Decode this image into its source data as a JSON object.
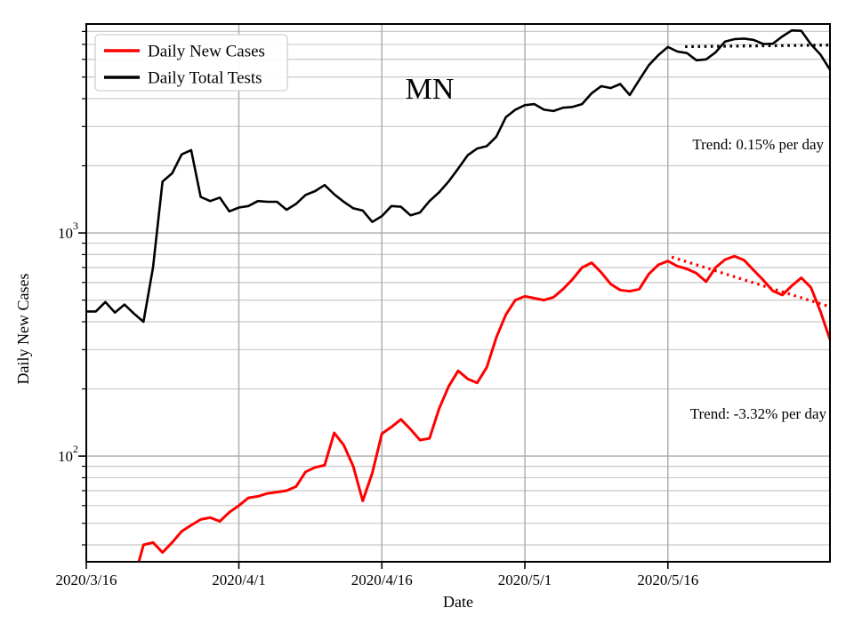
{
  "figure": {
    "title": "MN",
    "xlabel": "Date",
    "ylabel": "Daily New Cases",
    "legend": [
      {
        "label": "Daily New Cases",
        "color": "#ff0000"
      },
      {
        "label": "Daily Total Tests",
        "color": "#000000"
      }
    ],
    "annotations": [
      {
        "text": "Trend: 0.15% per day",
        "color": "#000000"
      },
      {
        "text": "Trend: -3.32% per day",
        "color": "#000000"
      }
    ],
    "colors": {
      "frame": "#000000",
      "grid_major": "#aaaaaa",
      "grid_minor": "#c8c8c8"
    }
  },
  "chart_data": {
    "type": "line",
    "yscale": "log",
    "ylim": [
      33.6,
      8640
    ],
    "x_range_days": [
      0,
      78
    ],
    "x_start_date": "2020/3/16",
    "x_tick_days": [
      0,
      16,
      31,
      46,
      61
    ],
    "x_tick_labels": [
      "2020/3/16",
      "2020/4/1",
      "2020/4/16",
      "2020/5/1",
      "2020/5/16"
    ],
    "y_ticks": [
      {
        "value": 1000,
        "base": "10",
        "exp": "3"
      },
      {
        "value": 100,
        "base": "10",
        "exp": "2"
      }
    ],
    "grid": true,
    "legend_position": "upper-left",
    "series": [
      {
        "name": "Daily Total Tests",
        "color": "#000000",
        "width": 2.6,
        "start_day": 0,
        "values": [
          445,
          445,
          490,
          440,
          478,
          435,
          400,
          700,
          1700,
          1850,
          2250,
          2350,
          1450,
          1390,
          1440,
          1250,
          1300,
          1320,
          1390,
          1380,
          1380,
          1270,
          1350,
          1480,
          1540,
          1640,
          1490,
          1380,
          1290,
          1260,
          1120,
          1190,
          1320,
          1310,
          1200,
          1235,
          1390,
          1520,
          1700,
          1940,
          2230,
          2390,
          2450,
          2700,
          3300,
          3570,
          3740,
          3780,
          3570,
          3520,
          3640,
          3670,
          3780,
          4230,
          4550,
          4460,
          4650,
          4150,
          4850,
          5650,
          6270,
          6820,
          6500,
          6400,
          5940,
          6000,
          6450,
          7210,
          7390,
          7430,
          7330,
          7030,
          7050,
          7600,
          8090,
          8050,
          7000,
          6300,
          5390
        ]
      },
      {
        "name": "Daily New Cases",
        "color": "#ff0000",
        "width": 3,
        "start_day": 5,
        "values": [
          28,
          40,
          41,
          37,
          41,
          46,
          49,
          52,
          53,
          51,
          56,
          60,
          65,
          66,
          68,
          69,
          70,
          73,
          85,
          89,
          91,
          127,
          112,
          90,
          63,
          84,
          126,
          135,
          146,
          132,
          118,
          120,
          163,
          205,
          241,
          222,
          213,
          250,
          340,
          430,
          500,
          520,
          510,
          500,
          515,
          560,
          620,
          700,
          735,
          666,
          590,
          555,
          548,
          560,
          655,
          720,
          748,
          710,
          690,
          660,
          605,
          700,
          760,
          787,
          755,
          680,
          615,
          550,
          527,
          580,
          630,
          570,
          445,
          333
        ]
      }
    ],
    "trendlines": [
      {
        "series": "Daily Total Tests",
        "rate_percent_per_day": 0.15,
        "day_start": 62.8,
        "value_start": 6840,
        "day_end": 78,
        "value_end": 6950,
        "color": "#000000"
      },
      {
        "series": "Daily New Cases",
        "rate_percent_per_day": -3.32,
        "day_start": 61.4,
        "value_start": 780,
        "day_end": 78,
        "value_end": 467,
        "color": "#ff0000"
      }
    ]
  }
}
